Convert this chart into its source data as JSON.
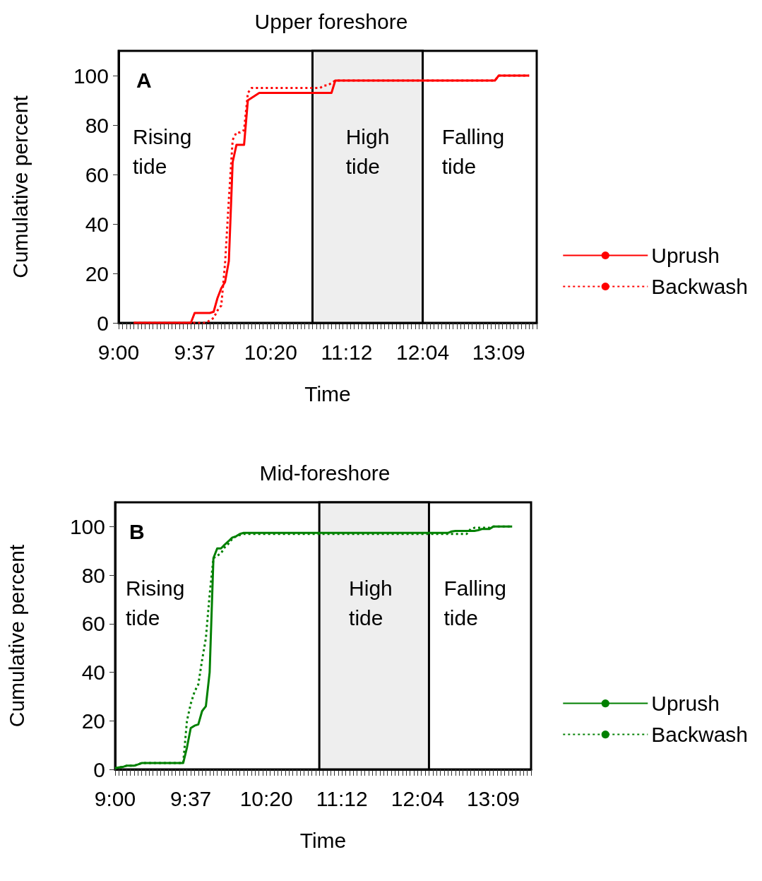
{
  "chart_data": [
    {
      "type": "line",
      "title": "Upper foreshore",
      "xlabel": "Time",
      "ylabel": "Cumulative percent",
      "categories": [
        "9:00",
        null,
        null,
        null,
        null,
        null,
        null,
        null,
        null,
        null,
        null,
        null,
        null,
        null,
        null,
        null,
        null,
        null,
        null,
        null,
        "9:37",
        null,
        null,
        null,
        null,
        null,
        null,
        null,
        null,
        null,
        null,
        null,
        null,
        null,
        null,
        null,
        null,
        null,
        null,
        null,
        "10:20",
        null,
        null,
        null,
        null,
        null,
        null,
        null,
        null,
        null,
        null,
        null,
        null,
        null,
        null,
        null,
        null,
        null,
        null,
        null,
        "11:12",
        null,
        null,
        null,
        null,
        null,
        null,
        null,
        null,
        null,
        null,
        null,
        null,
        null,
        null,
        null,
        null,
        null,
        null,
        null,
        "12:04",
        null,
        null,
        null,
        null,
        null,
        null,
        null,
        null,
        null,
        null,
        null,
        null,
        null,
        null,
        null,
        null,
        null,
        null,
        null,
        "13:09",
        null,
        null,
        null,
        null,
        null,
        null,
        null,
        null,
        null,
        null
      ],
      "series": [
        {
          "name": "Uprush",
          "color": "#ff0000",
          "line_style": "solid",
          "values": [
            null,
            null,
            null,
            null,
            0,
            0,
            0,
            0,
            0,
            0,
            0,
            0,
            0,
            0,
            0,
            0,
            0,
            0,
            0,
            0,
            4,
            4,
            4,
            4,
            4,
            4.5,
            10,
            14,
            16.5,
            25,
            65,
            72,
            72,
            72,
            90,
            91,
            92,
            93,
            93,
            93,
            93,
            93,
            93,
            93,
            93,
            93,
            93,
            93,
            93,
            93,
            93,
            93,
            93,
            93,
            93,
            93,
            93,
            98,
            98,
            98,
            98,
            98,
            98,
            98,
            98,
            98,
            98,
            98,
            98,
            98,
            98,
            98,
            98,
            98,
            98,
            98,
            98,
            98,
            98,
            98,
            98,
            98,
            98,
            98,
            98,
            98,
            98,
            98,
            98,
            98,
            98,
            98,
            98,
            98,
            98,
            98,
            98,
            98,
            98,
            98,
            100,
            100,
            100,
            100,
            100,
            100,
            100,
            100,
            100,
            null,
            null
          ]
        },
        {
          "name": "Backwash",
          "color": "#ff0000",
          "line_style": "dashed",
          "values": [
            null,
            null,
            null,
            null,
            0,
            0,
            0,
            0,
            0,
            0,
            0,
            0,
            0,
            0,
            0,
            0,
            0,
            0,
            0,
            0,
            0,
            0,
            0,
            0,
            1,
            2,
            5,
            7,
            24,
            50,
            74,
            77,
            77,
            78,
            93,
            95,
            95,
            95,
            95,
            95,
            95,
            95,
            95,
            95,
            95,
            95,
            95,
            95,
            95,
            95,
            95,
            95,
            95,
            95,
            96,
            96,
            97,
            98,
            98,
            98,
            98,
            98,
            98,
            98,
            98,
            98,
            98,
            98,
            98,
            98,
            98,
            98,
            98,
            98,
            98,
            98,
            98,
            98,
            98,
            98,
            98,
            98,
            98,
            98,
            98,
            98,
            98,
            98,
            98,
            98,
            98,
            98,
            98,
            98,
            98,
            98,
            98,
            98,
            98,
            98,
            100,
            100,
            100,
            100,
            100,
            100,
            100,
            100,
            100,
            null,
            null
          ]
        }
      ],
      "ylim": [
        0,
        110
      ],
      "yticks": [
        0,
        20,
        40,
        60,
        80,
        100
      ],
      "grid": false,
      "legend": "right",
      "marker": "none",
      "annotations": [
        "A",
        "Rising tide",
        "High tide",
        "Falling tide"
      ]
    },
    {
      "type": "line",
      "title": "Mid-foreshore",
      "xlabel": "Time",
      "ylabel": "Cumulative percent",
      "categories": [
        "9:00",
        null,
        null,
        null,
        null,
        null,
        null,
        null,
        null,
        null,
        null,
        null,
        null,
        null,
        null,
        null,
        null,
        null,
        null,
        null,
        "9:37",
        null,
        null,
        null,
        null,
        null,
        null,
        null,
        null,
        null,
        null,
        null,
        null,
        null,
        null,
        null,
        null,
        null,
        null,
        null,
        "10:20",
        null,
        null,
        null,
        null,
        null,
        null,
        null,
        null,
        null,
        null,
        null,
        null,
        null,
        null,
        null,
        null,
        null,
        null,
        null,
        "11:12",
        null,
        null,
        null,
        null,
        null,
        null,
        null,
        null,
        null,
        null,
        null,
        null,
        null,
        null,
        null,
        null,
        null,
        null,
        null,
        "12:04",
        null,
        null,
        null,
        null,
        null,
        null,
        null,
        null,
        null,
        null,
        null,
        null,
        null,
        null,
        null,
        null,
        null,
        null,
        null,
        "13:09",
        null,
        null,
        null,
        null,
        null,
        null,
        null,
        null,
        null,
        null
      ],
      "series": [
        {
          "name": "Uprush",
          "color": "#008000",
          "line_style": "solid",
          "values": [
            0.5,
            0.8,
            1,
            1.5,
            1.5,
            1.5,
            2,
            2.6,
            2.6,
            2.6,
            2.6,
            2.6,
            2.6,
            2.6,
            2.6,
            2.6,
            2.6,
            2.6,
            2.6,
            9,
            17,
            18,
            18.5,
            24,
            26,
            40,
            87,
            91,
            91,
            92.6,
            94,
            95.5,
            96,
            97,
            97.4,
            97.4,
            97.4,
            97.4,
            97.4,
            97.4,
            97.4,
            97.4,
            97.4,
            97.4,
            97.4,
            97.4,
            97.4,
            97.4,
            97.4,
            97.4,
            97.4,
            97.4,
            97.4,
            97.4,
            97.4,
            97.4,
            97.4,
            97.4,
            97.4,
            97.4,
            97.4,
            97.4,
            97.4,
            97.4,
            97.4,
            97.4,
            97.4,
            97.4,
            97.4,
            97.4,
            97.4,
            97.4,
            97.4,
            97.4,
            97.4,
            97.4,
            97.4,
            97.4,
            97.4,
            97.4,
            97.4,
            97.4,
            97.4,
            97.4,
            97.4,
            97.4,
            97.4,
            97.4,
            97.4,
            98,
            98.2,
            98.2,
            98.2,
            98.2,
            98.2,
            98.2,
            98.5,
            99,
            99,
            99,
            100,
            100,
            100,
            100,
            100,
            100,
            null,
            null,
            null,
            null,
            null
          ]
        },
        {
          "name": "Backwash",
          "color": "#008000",
          "line_style": "dashed",
          "values": [
            0.5,
            0.8,
            1,
            1.5,
            1.5,
            1.5,
            2,
            2.6,
            2.6,
            2.6,
            2.6,
            2.6,
            2.6,
            2.6,
            2.6,
            2.6,
            2.6,
            2.6,
            2.6,
            20,
            27,
            32,
            35,
            45,
            54,
            72,
            87,
            88,
            89,
            91.5,
            93,
            95,
            96,
            96.5,
            97,
            97,
            97,
            97,
            97,
            97,
            97,
            97,
            97,
            97,
            97,
            97,
            97,
            97,
            97,
            97,
            97,
            97,
            97,
            97,
            97,
            97,
            97,
            97,
            97,
            97,
            97,
            97,
            97,
            97,
            97,
            97,
            97,
            97,
            97,
            97,
            97,
            97,
            97,
            97,
            97,
            97,
            97,
            97,
            97,
            97,
            97,
            97,
            97,
            97,
            97,
            97,
            97,
            97,
            97,
            97,
            97,
            97,
            97,
            97,
            99,
            99.5,
            99.5,
            99.5,
            99.5,
            99.5,
            100,
            100,
            100,
            100,
            100,
            100,
            null,
            null,
            null,
            null,
            null
          ]
        }
      ],
      "ylim": [
        0,
        110
      ],
      "yticks": [
        0,
        20,
        40,
        60,
        80,
        100
      ],
      "grid": false,
      "legend": "right",
      "marker": "none",
      "annotations": [
        "B",
        "Rising tide",
        "High tide",
        "Falling tide"
      ]
    }
  ]
}
